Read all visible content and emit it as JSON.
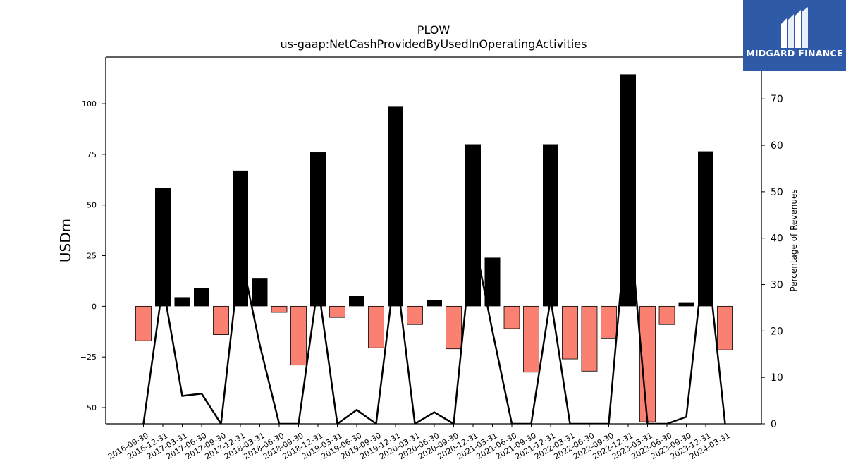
{
  "chart_data": {
    "type": "bar",
    "title": "PLOW",
    "subtitle": "us-gaap:NetCashProvidedByUsedInOperatingActivities",
    "ylabel": "USDm",
    "y2label": "Percentage of Revenues",
    "ylim": [
      -58,
      123
    ],
    "y2lim": [
      0,
      79
    ],
    "yticks": [
      -50,
      -25,
      0,
      25,
      50,
      75,
      100
    ],
    "y2ticks": [
      0,
      10,
      20,
      30,
      40,
      50,
      60,
      70
    ],
    "categories": [
      "2016-09-30",
      "2016-12-31",
      "2017-03-31",
      "2017-06-30",
      "2017-09-30",
      "2017-12-31",
      "2018-03-31",
      "2018-06-30",
      "2018-09-30",
      "2018-12-31",
      "2019-03-31",
      "2019-06-30",
      "2019-09-30",
      "2019-12-31",
      "2020-03-31",
      "2020-06-30",
      "2020-09-30",
      "2020-12-31",
      "2021-03-31",
      "2021-06-30",
      "2021-09-30",
      "2021-12-31",
      "2022-03-31",
      "2022-06-30",
      "2022-09-30",
      "2022-12-31",
      "2023-03-31",
      "2023-06-30",
      "2023-09-30",
      "2023-12-31",
      "2024-03-31"
    ],
    "series": [
      {
        "role": "bars",
        "color": "#fa8072",
        "values": [
          -17,
          58.5,
          4.5,
          9,
          -14,
          67,
          14,
          -3,
          -29,
          76,
          -5.5,
          5,
          -20.5,
          98.5,
          -9,
          3,
          -21,
          80,
          24,
          -11,
          -32.5,
          80,
          -26,
          -32,
          -16,
          114.5,
          -57,
          -9,
          2,
          76.5,
          -21.5
        ]
      },
      {
        "role": "line",
        "axis": "right",
        "color": "#000000",
        "values": [
          0,
          30,
          6,
          6.5,
          0,
          37,
          17,
          0,
          0,
          30,
          0,
          3,
          0,
          34,
          0,
          2.5,
          0,
          41,
          20,
          0,
          0,
          27,
          0,
          0,
          0,
          47,
          0,
          0,
          1.5,
          39,
          0
        ]
      }
    ]
  },
  "logo": {
    "text": "MIDGARD FINANCE",
    "icon": "midgard-logo-icon"
  }
}
